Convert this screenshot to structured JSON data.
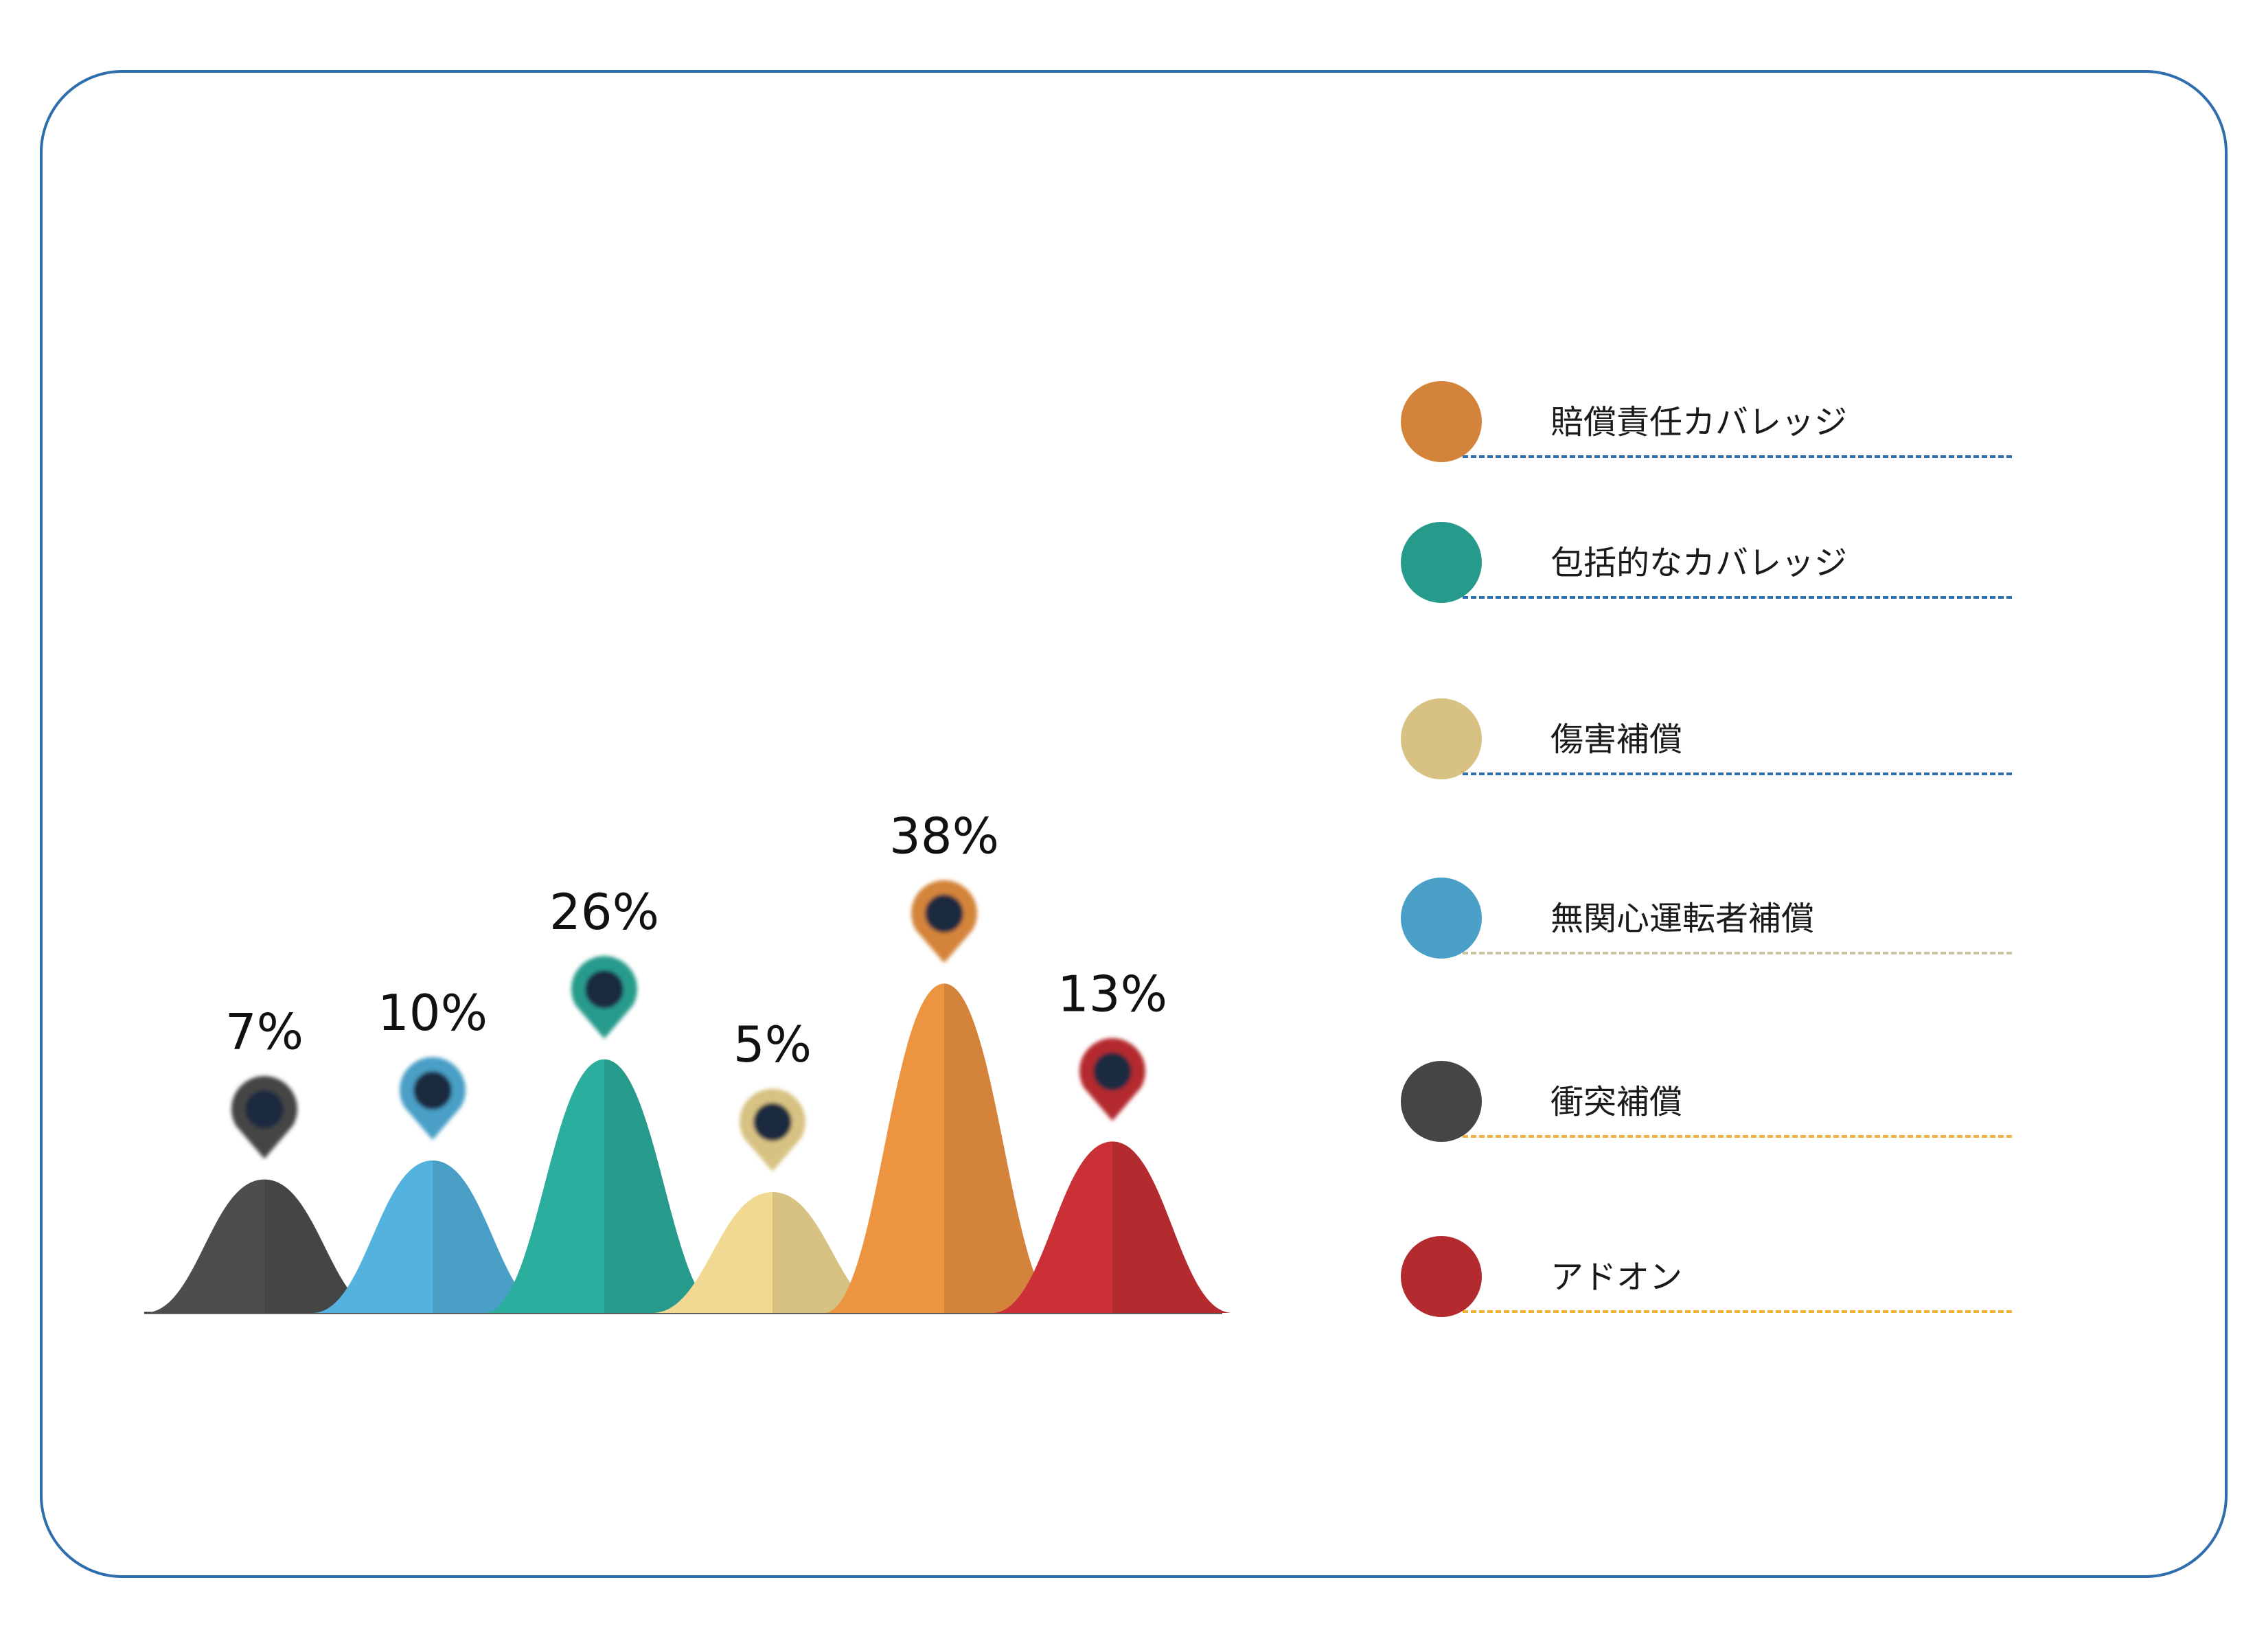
{
  "chart_data": {
    "type": "area",
    "peaks": [
      {
        "legend_index": 4,
        "value": 7,
        "label": "7%"
      },
      {
        "legend_index": 3,
        "value": 10,
        "label": "10%"
      },
      {
        "legend_index": 1,
        "value": 26,
        "label": "26%"
      },
      {
        "legend_index": 2,
        "value": 5,
        "label": "5%"
      },
      {
        "legend_index": 0,
        "value": 38,
        "label": "38%"
      },
      {
        "legend_index": 5,
        "value": 13,
        "label": "13%"
      }
    ],
    "legend": [
      {
        "label": "賠償責任カバレッジ",
        "color": "#d4843a",
        "line_color": "#2f6ead"
      },
      {
        "label": "包括的なカバレッジ",
        "color": "#269b8c",
        "line_color": "#2f6ead"
      },
      {
        "label": "傷害補償",
        "color": "#d8c283",
        "line_color": "#2f6ead"
      },
      {
        "label": "無関心運転者補償",
        "color": "#4a9fc6",
        "line_color": "#c9c4a0"
      },
      {
        "label": "衝突補償",
        "color": "#454545",
        "line_color": "#f0b33c"
      },
      {
        "label": "アドオン",
        "color": "#b42b2f",
        "line_color": "#f0b33c"
      }
    ],
    "legend_placement": "right",
    "grid": false
  },
  "colors": {
    "frame_border": "#2f6ead",
    "pin_core": "#1b2b40"
  }
}
